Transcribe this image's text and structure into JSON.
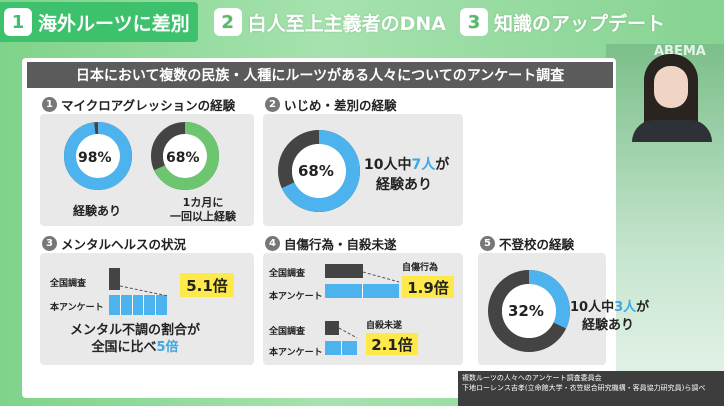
{
  "tabs": [
    {
      "num": "1",
      "label": "海外ルーツに差別"
    },
    {
      "num": "2",
      "label": "白人至上主義者のDNA"
    },
    {
      "num": "3",
      "label": "知識のアップデート"
    }
  ],
  "studio_logo": "ABEMA",
  "title": "日本において複数の民族・人種にルーツがある人々についてのアンケート調査",
  "sections": {
    "s1": {
      "num": "1",
      "heading": "マイクロアグレッションの経験",
      "donut1": {
        "value": 98,
        "label": "98%",
        "caption": "経験あり"
      },
      "donut2": {
        "value": 68,
        "label": "68%",
        "caption_line1": "1カ月に",
        "caption_line2": "一回以上経験"
      }
    },
    "s2": {
      "num": "2",
      "heading": "いじめ・差別の経験",
      "donut": {
        "value": 68,
        "label": "68%"
      },
      "text_pre": "10人中",
      "text_hl": "7人",
      "text_post": "が",
      "text_line2": "経験あり"
    },
    "s3": {
      "num": "3",
      "heading": "メンタルヘルスの状況",
      "row1": "全国調査",
      "row2": "本アンケート",
      "badge": "5.1倍",
      "caption_line1": "メンタル不調の割合が",
      "caption_pre": "全国に比べ",
      "caption_hl": "5倍"
    },
    "s4": {
      "num": "4",
      "heading": "自傷行為・自殺未遂",
      "a_label": "自傷行為",
      "a_row1": "全国調査",
      "a_row2": "本アンケート",
      "a_badge": "1.9倍",
      "b_label": "自殺未遂",
      "b_row1": "全国調査",
      "b_row2": "本アンケート",
      "b_badge": "2.1倍"
    },
    "s5": {
      "num": "5",
      "heading": "不登校の経験",
      "donut": {
        "value": 32,
        "label": "32%"
      },
      "text_pre": "10人中",
      "text_hl": "3人",
      "text_post": "が",
      "text_line2": "経験あり"
    }
  },
  "footer": {
    "line1": "複数ルーツの人々へのアンケート調査委員会",
    "line2": "下地ローレンス吉孝(立命館大学・衣笠総合研究機構・客員協力研究員)ら調べ"
  },
  "colors": {
    "blue": "#4db3ee",
    "green": "#6cc56f",
    "dark": "#3d3d3d",
    "yellow": "#fde94a"
  }
}
